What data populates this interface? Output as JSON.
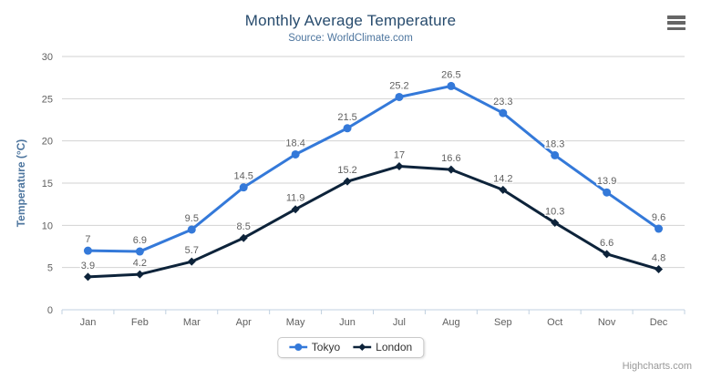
{
  "chart_data": {
    "type": "line",
    "title": "Monthly Average Temperature",
    "subtitle": "Source: WorldClimate.com",
    "categories": [
      "Jan",
      "Feb",
      "Mar",
      "Apr",
      "May",
      "Jun",
      "Jul",
      "Aug",
      "Sep",
      "Oct",
      "Nov",
      "Dec"
    ],
    "series": [
      {
        "name": "Tokyo",
        "color": "#3479d9",
        "marker": "circle",
        "values": [
          7,
          6.9,
          9.5,
          14.5,
          18.4,
          21.5,
          25.2,
          26.5,
          23.3,
          18.3,
          13.9,
          9.6
        ]
      },
      {
        "name": "London",
        "color": "#0d233a",
        "marker": "diamond",
        "values": [
          3.9,
          4.2,
          5.7,
          8.5,
          11.9,
          15.2,
          17,
          16.6,
          14.2,
          10.3,
          6.6,
          4.8
        ]
      }
    ],
    "xlabel": "",
    "ylabel": "Temperature (°C)",
    "ylim": [
      0,
      30
    ],
    "ytick_interval": 5,
    "grid": true,
    "legend_position": "bottom",
    "data_labels": true
  },
  "credits_label": "Highcharts.com",
  "icons": {
    "export_menu": "hamburger-icon"
  },
  "colors": {
    "title": "#274b6d",
    "subtitle": "#4d759e",
    "axis_label": "#606060",
    "axis_title": "#4d759e",
    "grid": "#d2d2d2",
    "axis_line": "#c0d0e0",
    "data_label": "#606060",
    "credits": "#999999",
    "menu": "#666666"
  }
}
